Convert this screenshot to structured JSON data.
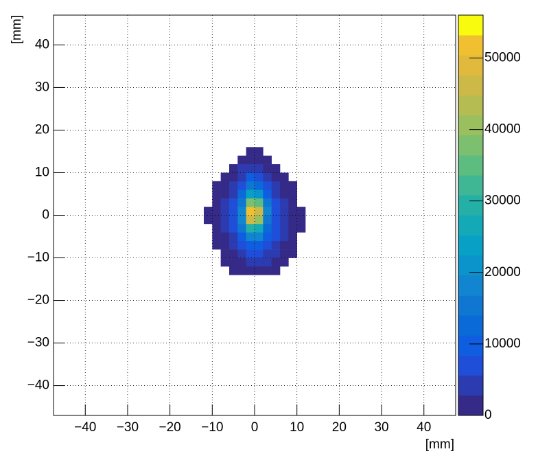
{
  "chart_data": {
    "type": "heatmap",
    "x_title": "[mm]",
    "y_title": "[mm]",
    "x_bins": [
      -12,
      -10,
      -8,
      -6,
      -4,
      -2,
      0,
      2,
      4,
      6,
      8,
      10,
      12
    ],
    "y_bins": [
      -14,
      -12,
      -10,
      -8,
      -6,
      -4,
      -2,
      0,
      2,
      4,
      6,
      8,
      10,
      12,
      14,
      16
    ],
    "z": [
      [
        0,
        0,
        0,
        200,
        800,
        1500,
        1500,
        1000,
        300,
        0,
        0,
        0
      ],
      [
        0,
        0,
        200,
        1200,
        2500,
        4000,
        4000,
        3000,
        1800,
        500,
        0,
        0
      ],
      [
        0,
        0,
        800,
        2500,
        4500,
        7000,
        7000,
        5000,
        3500,
        1500,
        200,
        0
      ],
      [
        0,
        300,
        1800,
        3800,
        7000,
        11000,
        11000,
        7000,
        5000,
        2500,
        600,
        0
      ],
      [
        0,
        600,
        2500,
        5000,
        10000,
        18000,
        17000,
        10000,
        6500,
        3500,
        1200,
        0
      ],
      [
        0,
        900,
        3000,
        6500,
        14000,
        30000,
        27000,
        13000,
        7500,
        4500,
        1800,
        100
      ],
      [
        100,
        1000,
        3500,
        7500,
        17000,
        46000,
        40000,
        16000,
        8000,
        4500,
        2000,
        200
      ],
      [
        100,
        1000,
        3500,
        7500,
        18000,
        52000,
        45000,
        17000,
        8000,
        4500,
        2000,
        200
      ],
      [
        0,
        800,
        3000,
        7000,
        16000,
        38000,
        34000,
        15000,
        7000,
        3500,
        1500,
        0
      ],
      [
        0,
        500,
        2500,
        5500,
        12000,
        24000,
        22000,
        11000,
        5500,
        2500,
        800,
        0
      ],
      [
        0,
        200,
        1500,
        4000,
        8000,
        14000,
        13000,
        7000,
        3500,
        1500,
        300,
        0
      ],
      [
        0,
        0,
        800,
        2500,
        5000,
        9000,
        8000,
        4500,
        2000,
        600,
        0,
        0
      ],
      [
        0,
        0,
        0,
        1200,
        3000,
        5000,
        4500,
        2500,
        800,
        0,
        0,
        0
      ],
      [
        0,
        0,
        0,
        0,
        1500,
        2500,
        2000,
        800,
        0,
        0,
        0,
        0
      ],
      [
        0,
        0,
        0,
        0,
        0,
        500,
        300,
        0,
        0,
        0,
        0,
        0
      ]
    ],
    "xlim": [
      -47.5,
      47.5
    ],
    "ylim": [
      -47,
      47
    ],
    "zlim": [
      0,
      56000
    ],
    "xticks": [
      {
        "value": -40,
        "label": "−40"
      },
      {
        "value": -30,
        "label": "−30"
      },
      {
        "value": -20,
        "label": "−20"
      },
      {
        "value": -10,
        "label": "−10"
      },
      0,
      10,
      20,
      30,
      40
    ],
    "yticks": [
      {
        "value": -40,
        "label": "−40"
      },
      {
        "value": -30,
        "label": "−30"
      },
      {
        "value": -20,
        "label": "−20"
      },
      {
        "value": -10,
        "label": "−10"
      },
      0,
      10,
      20,
      30,
      40
    ],
    "zticks": [
      0,
      10000,
      20000,
      30000,
      40000,
      50000
    ],
    "grid": true,
    "palette": [
      "#352a87",
      "#2d3bb0",
      "#1f4ed8",
      "#0f5de0",
      "#0a6ad8",
      "#0f77d2",
      "#1185cf",
      "#0b93cc",
      "#08a0c4",
      "#13a9b7",
      "#24b0a6",
      "#3fb795",
      "#5dbc80",
      "#7cbf6e",
      "#9abf5e",
      "#b5bd52",
      "#cdb947",
      "#e1b93c",
      "#f1c030",
      "#f9fb0e"
    ]
  }
}
